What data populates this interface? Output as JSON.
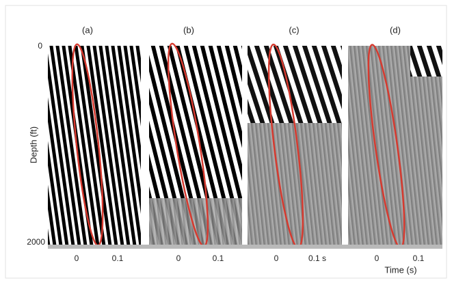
{
  "figure": {
    "panels": [
      {
        "label": "(a)",
        "x_tick_labels": [
          "0",
          "0.1"
        ]
      },
      {
        "label": "(b)",
        "x_tick_labels": [
          "0",
          "0.1"
        ]
      },
      {
        "label": "(c)",
        "x_tick_labels": [
          "0",
          "0.1 s"
        ]
      },
      {
        "label": "(d)",
        "x_tick_labels": [
          "0",
          "0.1"
        ]
      }
    ],
    "y_axis_label": "Depth (ft)",
    "y_tick_labels": [
      "0",
      "2000"
    ],
    "x_axis_label": "Time (s)"
  }
}
